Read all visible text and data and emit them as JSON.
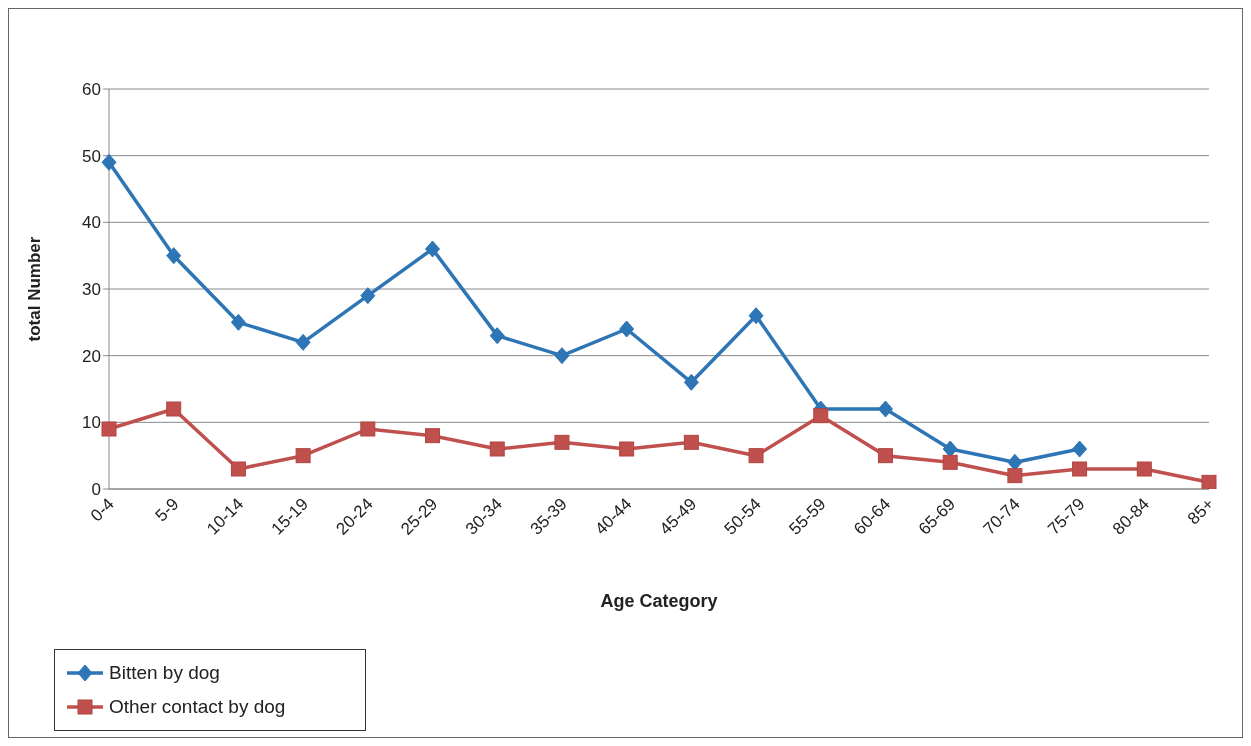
{
  "chart_data": {
    "type": "line",
    "xlabel": "Age Category",
    "ylabel": "total  Number",
    "categories": [
      "0-4",
      "5-9",
      "10-14",
      "15-19",
      "20-24",
      "25-29",
      "30-34",
      "35-39",
      "40-44",
      "45-49",
      "50-54",
      "55-59",
      "60-64",
      "65-69",
      "70-74",
      "75-79",
      "80-84",
      "85+"
    ],
    "series": [
      {
        "name": "Bitten by dog",
        "color": "#2e75b6",
        "marker": "diamond",
        "values": [
          49,
          35,
          25,
          22,
          29,
          36,
          23,
          20,
          24,
          16,
          26,
          12,
          12,
          6,
          4,
          6,
          null,
          null
        ]
      },
      {
        "name": "Other contact by dog",
        "color": "#c0504d",
        "marker": "square",
        "values": [
          9,
          12,
          3,
          5,
          9,
          8,
          6,
          7,
          6,
          7,
          5,
          11,
          5,
          4,
          2,
          3,
          3,
          1
        ]
      }
    ],
    "ylim": [
      0,
      60
    ],
    "yticks": [
      0,
      10,
      20,
      30,
      40,
      50,
      60
    ],
    "grid": "y",
    "legend": "bottom left"
  }
}
